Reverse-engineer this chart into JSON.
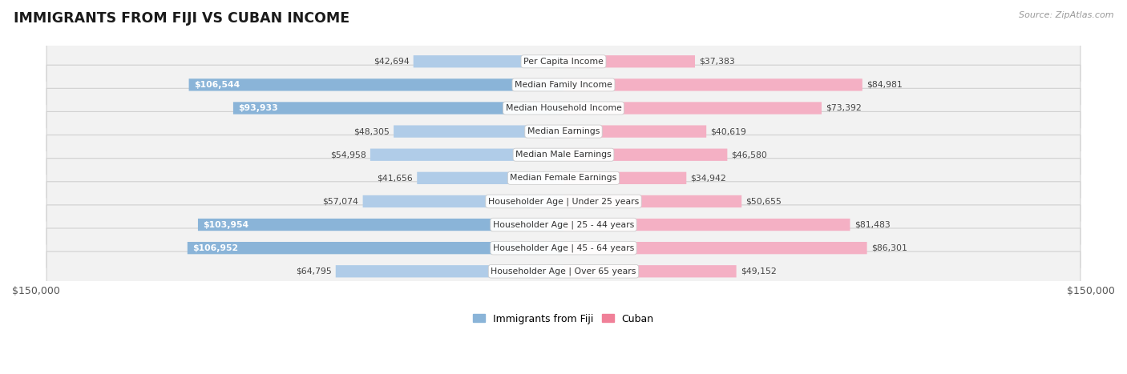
{
  "title": "IMMIGRANTS FROM FIJI VS CUBAN INCOME",
  "source": "Source: ZipAtlas.com",
  "categories": [
    "Per Capita Income",
    "Median Family Income",
    "Median Household Income",
    "Median Earnings",
    "Median Male Earnings",
    "Median Female Earnings",
    "Householder Age | Under 25 years",
    "Householder Age | 25 - 44 years",
    "Householder Age | 45 - 64 years",
    "Householder Age | Over 65 years"
  ],
  "fiji_values": [
    42694,
    106544,
    93933,
    48305,
    54958,
    41656,
    57074,
    103954,
    106952,
    64795
  ],
  "cuban_values": [
    37383,
    84981,
    73392,
    40619,
    46580,
    34942,
    50655,
    81483,
    86301,
    49152
  ],
  "fiji_color": "#8ab4d8",
  "cuban_color": "#f08098",
  "fiji_color_light": "#b0cce8",
  "cuban_color_light": "#f4b0c4",
  "max_value": 150000,
  "row_bg_even": "#f0f0f0",
  "row_bg_odd": "#e8e8e8",
  "row_border": "#cccccc",
  "label_thresh": 88000,
  "fig_bg": "#ffffff"
}
